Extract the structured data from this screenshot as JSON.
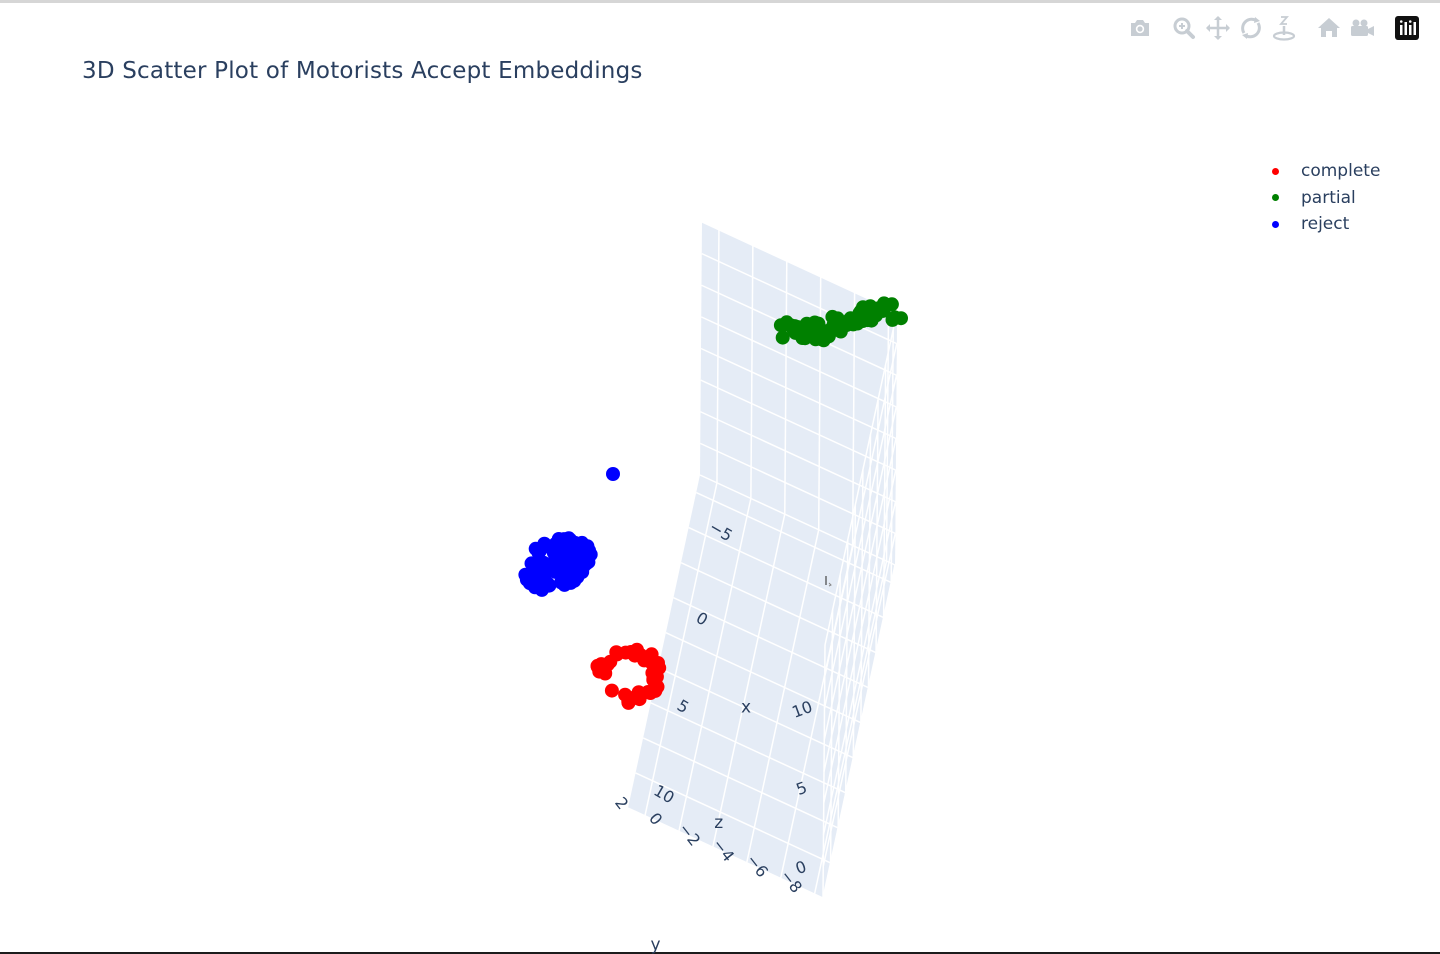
{
  "chart_data": {
    "type": "scatter3d",
    "title": "3D Scatter Plot of Motorists Accept Embeddings",
    "x_axis": {
      "label": "x",
      "ticks": [
        -5,
        0,
        5,
        10
      ],
      "range": [
        -7,
        12
      ]
    },
    "y_axis": {
      "label": "y",
      "ticks": [
        -8,
        -6,
        -4,
        -2,
        0,
        2
      ],
      "range": [
        -8.5,
        3
      ]
    },
    "z_axis": {
      "label": "z",
      "ticks": [
        0,
        5,
        10
      ],
      "range": [
        -2,
        14
      ]
    },
    "legend": {
      "placement": "top-right"
    },
    "series": [
      {
        "name": "complete",
        "color": "#ff0000"
      },
      {
        "name": "partial",
        "color": "#008000"
      },
      {
        "name": "reject",
        "color": "#0000ff"
      }
    ]
  },
  "modebar": [
    {
      "name": "camera-icon",
      "label": "Download plot as a png"
    },
    {
      "name": "zoom-icon",
      "label": "Zoom"
    },
    {
      "name": "pan-icon",
      "label": "Pan"
    },
    {
      "name": "orbit-icon",
      "label": "Orbital rotation"
    },
    {
      "name": "turntable-icon",
      "label": "Turntable rotation"
    },
    {
      "name": "home-icon",
      "label": "Reset camera to default"
    },
    {
      "name": "video-camera-icon",
      "label": "Reset camera to last save"
    },
    {
      "name": "plotly-logo-icon",
      "label": "Produced with Plotly"
    }
  ]
}
